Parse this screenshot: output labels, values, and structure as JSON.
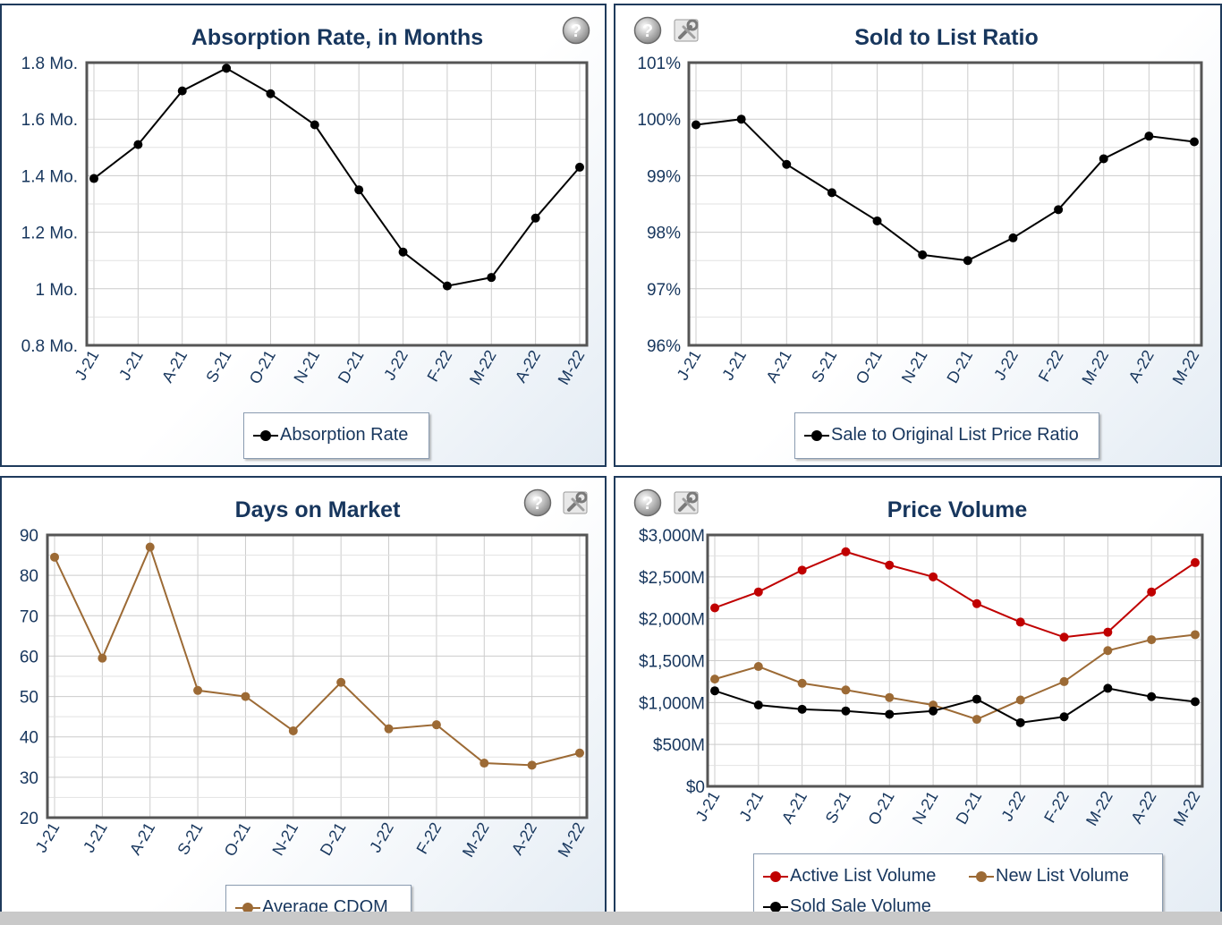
{
  "colors": {
    "title": "#17365d",
    "axis_text": "#17365d",
    "frame": "#555555",
    "grid": "#cccccc",
    "black_series": "#000000",
    "brown_series": "#9c6a35",
    "red_series": "#c00000"
  },
  "icons": [
    "help-icon",
    "wrench-icon"
  ],
  "chart_data": [
    {
      "type": "line",
      "title": "Absorption Rate, in Months",
      "categories": [
        "J-21",
        "J-21",
        "A-21",
        "S-21",
        "O-21",
        "N-21",
        "D-21",
        "J-22",
        "F-22",
        "M-22",
        "A-22",
        "M-22"
      ],
      "series": [
        {
          "name": "Absorption Rate",
          "color": "#000000",
          "values": [
            1.39,
            1.51,
            1.7,
            1.78,
            1.69,
            1.58,
            1.35,
            1.13,
            1.01,
            1.04,
            1.25,
            1.43
          ]
        }
      ],
      "ylim": [
        0.8,
        1.8
      ],
      "yticks": [
        0.8,
        1.0,
        1.2,
        1.4,
        1.6,
        1.8
      ],
      "ytick_labels": [
        "0.8 Mo.",
        "1 Mo.",
        "1.2 Mo.",
        "1.4 Mo.",
        "1.6 Mo.",
        "1.8 Mo."
      ],
      "grid": true,
      "legend_position": "bottom",
      "icons": [
        "help-icon"
      ]
    },
    {
      "type": "line",
      "title": "Sold to List Ratio",
      "categories": [
        "J-21",
        "J-21",
        "A-21",
        "S-21",
        "O-21",
        "N-21",
        "D-21",
        "J-22",
        "F-22",
        "M-22",
        "A-22",
        "M-22"
      ],
      "series": [
        {
          "name": "Sale to Original List Price Ratio",
          "color": "#000000",
          "values": [
            99.9,
            100.0,
            99.2,
            98.7,
            98.2,
            97.6,
            97.5,
            97.9,
            98.4,
            99.3,
            99.7,
            99.6
          ]
        }
      ],
      "ylim": [
        96,
        101
      ],
      "yticks": [
        96,
        97,
        98,
        99,
        100,
        101
      ],
      "ytick_labels": [
        "96%",
        "97%",
        "98%",
        "99%",
        "100%",
        "101%"
      ],
      "grid": true,
      "legend_position": "bottom",
      "icons": [
        "help-icon",
        "wrench-icon"
      ]
    },
    {
      "type": "line",
      "title": "Days on Market",
      "categories": [
        "J-21",
        "J-21",
        "A-21",
        "S-21",
        "O-21",
        "N-21",
        "D-21",
        "J-22",
        "F-22",
        "M-22",
        "A-22",
        "M-22"
      ],
      "series": [
        {
          "name": "Average CDOM",
          "color": "#9c6a35",
          "values": [
            84.5,
            59.5,
            87.0,
            51.5,
            50.0,
            41.5,
            53.5,
            42.0,
            43.0,
            33.5,
            33.0,
            36.0
          ]
        }
      ],
      "ylim": [
        20,
        90
      ],
      "yticks": [
        20,
        30,
        40,
        50,
        60,
        70,
        80,
        90
      ],
      "ytick_labels": [
        "20",
        "30",
        "40",
        "50",
        "60",
        "70",
        "80",
        "90"
      ],
      "grid": true,
      "legend_position": "bottom",
      "icons": [
        "help-icon",
        "wrench-icon"
      ]
    },
    {
      "type": "line",
      "title": "Price Volume",
      "categories": [
        "J-21",
        "J-21",
        "A-21",
        "S-21",
        "O-21",
        "N-21",
        "D-21",
        "J-22",
        "F-22",
        "M-22",
        "A-22",
        "M-22"
      ],
      "series": [
        {
          "name": "Active List Volume",
          "color": "#c00000",
          "values": [
            2130,
            2320,
            2580,
            2800,
            2640,
            2500,
            2180,
            1960,
            1780,
            1840,
            2320,
            2670
          ]
        },
        {
          "name": "New List Volume",
          "color": "#9c6a35",
          "values": [
            1280,
            1430,
            1230,
            1150,
            1060,
            970,
            800,
            1030,
            1250,
            1620,
            1750,
            1810
          ]
        },
        {
          "name": "Sold Sale Volume",
          "color": "#000000",
          "values": [
            1140,
            970,
            920,
            900,
            860,
            900,
            1040,
            760,
            830,
            1170,
            1070,
            1010
          ]
        }
      ],
      "ylim": [
        0,
        3000
      ],
      "yticks": [
        0,
        500,
        1000,
        1500,
        2000,
        2500,
        3000
      ],
      "ytick_labels": [
        "$0",
        "$500M",
        "$1,000M",
        "$1,500M",
        "$2,000M",
        "$2,500M",
        "$3,000M"
      ],
      "grid": true,
      "legend_position": "bottom",
      "icons": [
        "help-icon",
        "wrench-icon"
      ]
    }
  ]
}
